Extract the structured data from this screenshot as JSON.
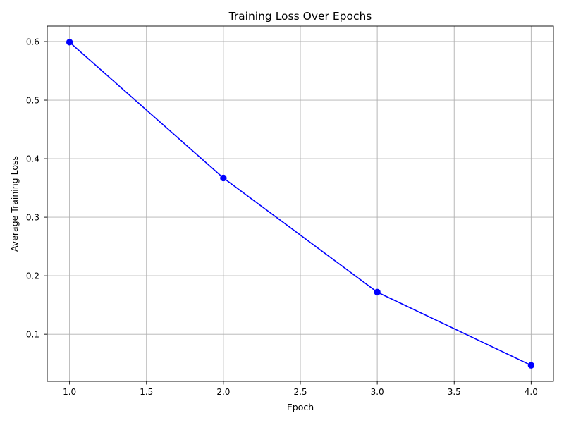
{
  "chart_data": {
    "type": "line",
    "title": "Training Loss Over Epochs",
    "xlabel": "Epoch",
    "ylabel": "Average Training Loss",
    "xlim": [
      0.855,
      4.145
    ],
    "ylim": [
      0.0195,
      0.6265
    ],
    "xticks": [
      1.0,
      1.5,
      2.0,
      2.5,
      3.0,
      3.5,
      4.0
    ],
    "xtick_labels": [
      "1.0",
      "1.5",
      "2.0",
      "2.5",
      "3.0",
      "3.5",
      "4.0"
    ],
    "yticks": [
      0.1,
      0.2,
      0.3,
      0.4,
      0.5,
      0.6
    ],
    "ytick_labels": [
      "0.1",
      "0.2",
      "0.3",
      "0.4",
      "0.5",
      "0.6"
    ],
    "grid": true,
    "series": [
      {
        "color": "#0000ff",
        "marker": "circle",
        "x": [
          1,
          2,
          3,
          4
        ],
        "y": [
          0.599,
          0.367,
          0.172,
          0.047
        ]
      }
    ]
  }
}
